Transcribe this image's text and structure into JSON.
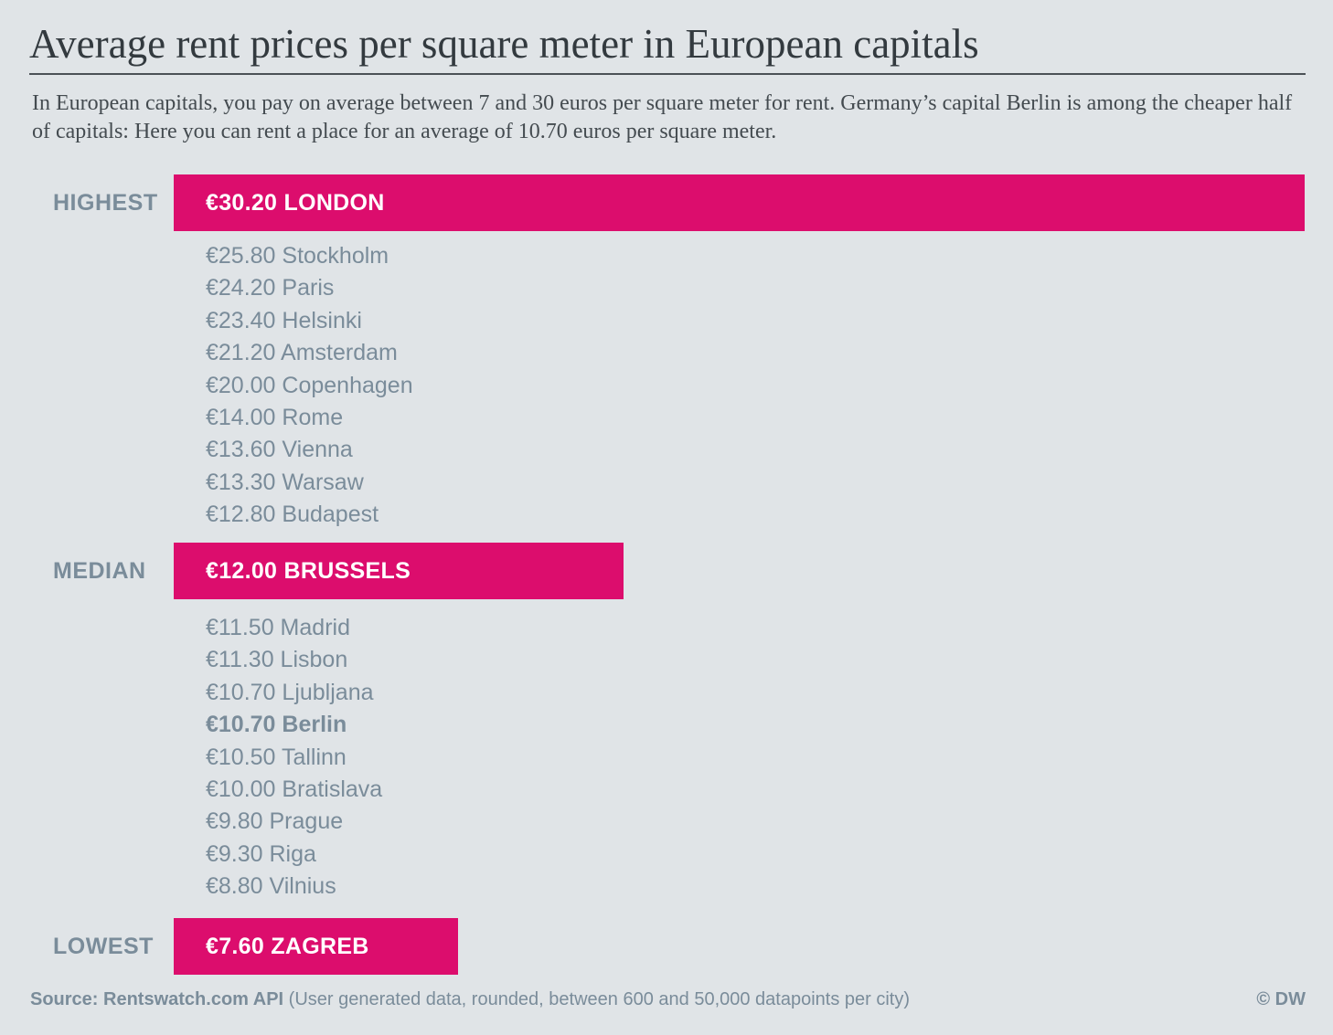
{
  "title": "Average rent prices per square meter in European capitals",
  "subtitle": "In European capitals, you pay on average between 7 and 30 euros per square meter for rent. Germany’s capital Berlin is among the cheaper half of capitals: Here you can rent a place for an average of 10.70 euros per square meter.",
  "source": {
    "label": "Source: Rentswatch.com API",
    "detail": " (User generated data, rounded, between 600 and 50,000 datapoints per city)"
  },
  "credit": "© DW",
  "colors": {
    "background": "#e0e4e7",
    "highlight_bar": "#dc0d6d",
    "label_text": "#7a8c9a"
  },
  "chart_data": {
    "type": "bar",
    "orientation": "horizontal",
    "currency": "€",
    "highlights": [
      {
        "tag": "HIGHEST",
        "city": "LONDON",
        "value": 30.2,
        "label": "€30.20 LONDON"
      },
      {
        "tag": "MEDIAN",
        "city": "BRUSSELS",
        "value": 12.0,
        "label": "€12.00 BRUSSELS"
      },
      {
        "tag": "LOWEST",
        "city": "ZAGREB",
        "value": 7.6,
        "label": "€7.60 ZAGREB"
      }
    ],
    "upper_list": [
      {
        "label": "€25.80 Stockholm",
        "value": 25.8
      },
      {
        "label": "€24.20 Paris",
        "value": 24.2
      },
      {
        "label": "€23.40 Helsinki",
        "value": 23.4
      },
      {
        "label": "€21.20 Amsterdam",
        "value": 21.2
      },
      {
        "label": "€20.00 Copenhagen",
        "value": 20.0
      },
      {
        "label": "€14.00 Rome",
        "value": 14.0
      },
      {
        "label": "€13.60 Vienna",
        "value": 13.6
      },
      {
        "label": "€13.30 Warsaw",
        "value": 13.3
      },
      {
        "label": "€12.80 Budapest",
        "value": 12.8
      }
    ],
    "lower_list": [
      {
        "label": "€11.50 Madrid",
        "value": 11.5
      },
      {
        "label": "€11.30 Lisbon",
        "value": 11.3
      },
      {
        "label": "€10.70 Ljubljana",
        "value": 10.7
      },
      {
        "label": "€10.70 Berlin",
        "value": 10.7,
        "emphasis": true
      },
      {
        "label": "€10.50 Tallinn",
        "value": 10.5
      },
      {
        "label": "€10.00 Bratislava",
        "value": 10.0
      },
      {
        "label": "€9.80 Prague",
        "value": 9.8
      },
      {
        "label": "€9.30 Riga",
        "value": 9.3
      },
      {
        "label": "€8.80 Vilnius",
        "value": 8.8
      }
    ]
  }
}
